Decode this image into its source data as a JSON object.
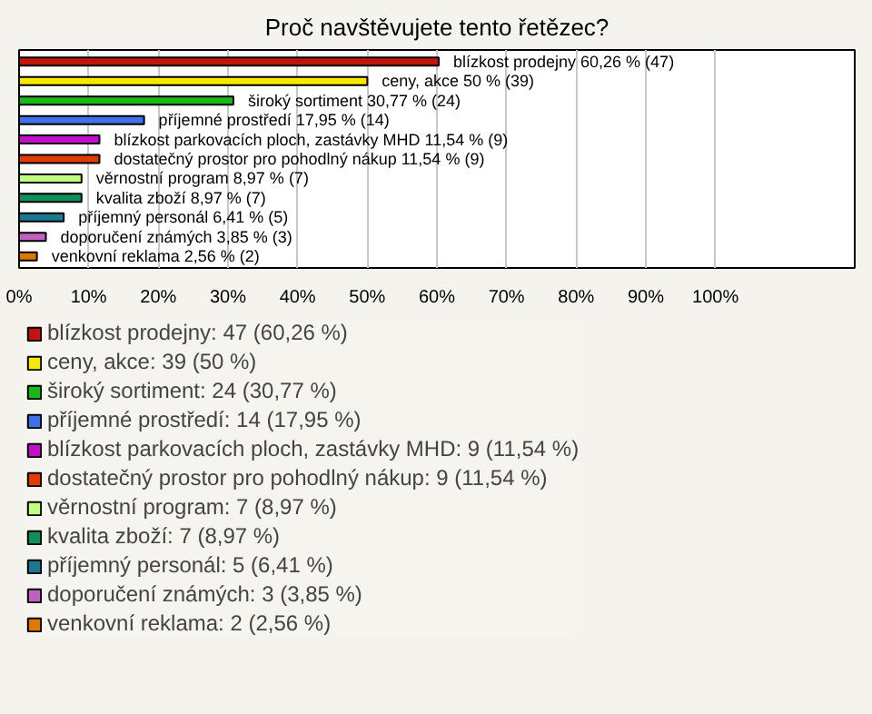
{
  "chart_data": {
    "type": "bar",
    "orientation": "horizontal",
    "title": "Proč navštěvujete tento řetězec?",
    "categories": [
      "blízkost prodejny",
      "ceny, akce",
      "široký sortiment",
      "příjemné prostředí",
      "blízkost parkovacích ploch, zastávky MHD",
      "dostatečný prostor pro pohodlný nákup",
      "věrnostní program",
      "kvalita zboží",
      "příjemný personál",
      "doporučení známých",
      "venkovní reklama"
    ],
    "series": [
      {
        "name": "blízkost prodejny: 47 (60,26 %)",
        "color": "#c0140c",
        "values": [
          60.26,
          null,
          null,
          null,
          null,
          null,
          null,
          null,
          null,
          null,
          null
        ],
        "value_labels": [
          "60,26 % (47)",
          null,
          null,
          null,
          null,
          null,
          null,
          null,
          null,
          null,
          null
        ]
      },
      {
        "name": "ceny, akce: 39 (50 %)",
        "color": "#f8e800",
        "values": [
          null,
          50,
          null,
          null,
          null,
          null,
          null,
          null,
          null,
          null,
          null
        ],
        "value_labels": [
          null,
          "50 % (39)",
          null,
          null,
          null,
          null,
          null,
          null,
          null,
          null,
          null
        ]
      },
      {
        "name": "široký sortiment: 24 (30,77 %)",
        "color": "#18b818",
        "values": [
          null,
          null,
          30.77,
          null,
          null,
          null,
          null,
          null,
          null,
          null,
          null
        ],
        "value_labels": [
          null,
          null,
          "30,77 % (24)",
          null,
          null,
          null,
          null,
          null,
          null,
          null,
          null
        ]
      },
      {
        "name": "příjemné prostředí: 14 (17,95 %)",
        "color": "#4070e8",
        "values": [
          null,
          null,
          null,
          17.95,
          null,
          null,
          null,
          null,
          null,
          null,
          null
        ],
        "value_labels": [
          null,
          null,
          null,
          "17,95 % (14)",
          null,
          null,
          null,
          null,
          null,
          null,
          null
        ]
      },
      {
        "name": "blízkost parkovacích ploch, zastávky MHD: 9 (11,54 %)",
        "color": "#c010c8",
        "values": [
          null,
          null,
          null,
          null,
          11.54,
          null,
          null,
          null,
          null,
          null,
          null
        ],
        "value_labels": [
          null,
          null,
          null,
          null,
          "11,54 % (9)",
          null,
          null,
          null,
          null,
          null,
          null
        ]
      },
      {
        "name": "dostatečný prostor pro pohodlný nákup: 9 (11,54 %)",
        "color": "#e03c00",
        "values": [
          null,
          null,
          null,
          null,
          null,
          11.54,
          null,
          null,
          null,
          null,
          null
        ],
        "value_labels": [
          null,
          null,
          null,
          null,
          null,
          "11,54 % (9)",
          null,
          null,
          null,
          null,
          null
        ]
      },
      {
        "name": "věrnostní program: 7 (8,97 %)",
        "color": "#c0ff80",
        "values": [
          null,
          null,
          null,
          null,
          null,
          null,
          8.97,
          null,
          null,
          null,
          null
        ],
        "value_labels": [
          null,
          null,
          null,
          null,
          null,
          null,
          "8,97 % (7)",
          null,
          null,
          null,
          null
        ]
      },
      {
        "name": "kvalita zboží: 7 (8,97 %)",
        "color": "#10905a",
        "values": [
          null,
          null,
          null,
          null,
          null,
          null,
          null,
          8.97,
          null,
          null,
          null
        ],
        "value_labels": [
          null,
          null,
          null,
          null,
          null,
          null,
          null,
          "8,97 % (7)",
          null,
          null,
          null
        ]
      },
      {
        "name": "příjemný personál: 5 (6,41 %)",
        "color": "#1a7890",
        "values": [
          null,
          null,
          null,
          null,
          null,
          null,
          null,
          null,
          6.41,
          null,
          null
        ],
        "value_labels": [
          null,
          null,
          null,
          null,
          null,
          null,
          null,
          null,
          "6,41 % (5)",
          null,
          null
        ]
      },
      {
        "name": "doporučení známých: 3 (3,85 %)",
        "color": "#c060c0",
        "values": [
          null,
          null,
          null,
          null,
          null,
          null,
          null,
          null,
          null,
          3.85,
          null
        ],
        "value_labels": [
          null,
          null,
          null,
          null,
          null,
          null,
          null,
          null,
          null,
          "3,85 % (3)",
          null
        ]
      },
      {
        "name": "venkovní reklama: 2 (2,56 %)",
        "color": "#e07800",
        "values": [
          null,
          null,
          null,
          null,
          null,
          null,
          null,
          null,
          null,
          null,
          2.56
        ],
        "value_labels": [
          null,
          null,
          null,
          null,
          null,
          null,
          null,
          null,
          null,
          null,
          "2,56 % (2)"
        ]
      }
    ],
    "xlim": [
      0,
      120
    ],
    "xticks": [
      {
        "value": 0,
        "label": "0%"
      },
      {
        "value": 10,
        "label": "10%"
      },
      {
        "value": 20,
        "label": "20%"
      },
      {
        "value": 30,
        "label": "30%"
      },
      {
        "value": 40,
        "label": "40%"
      },
      {
        "value": 50,
        "label": "50%"
      },
      {
        "value": 60,
        "label": "60%"
      },
      {
        "value": 70,
        "label": "70%"
      },
      {
        "value": 80,
        "label": "80%"
      },
      {
        "value": 90,
        "label": "90%"
      },
      {
        "value": 100,
        "label": "100%"
      }
    ],
    "grid": "x",
    "legend": "bottom"
  }
}
